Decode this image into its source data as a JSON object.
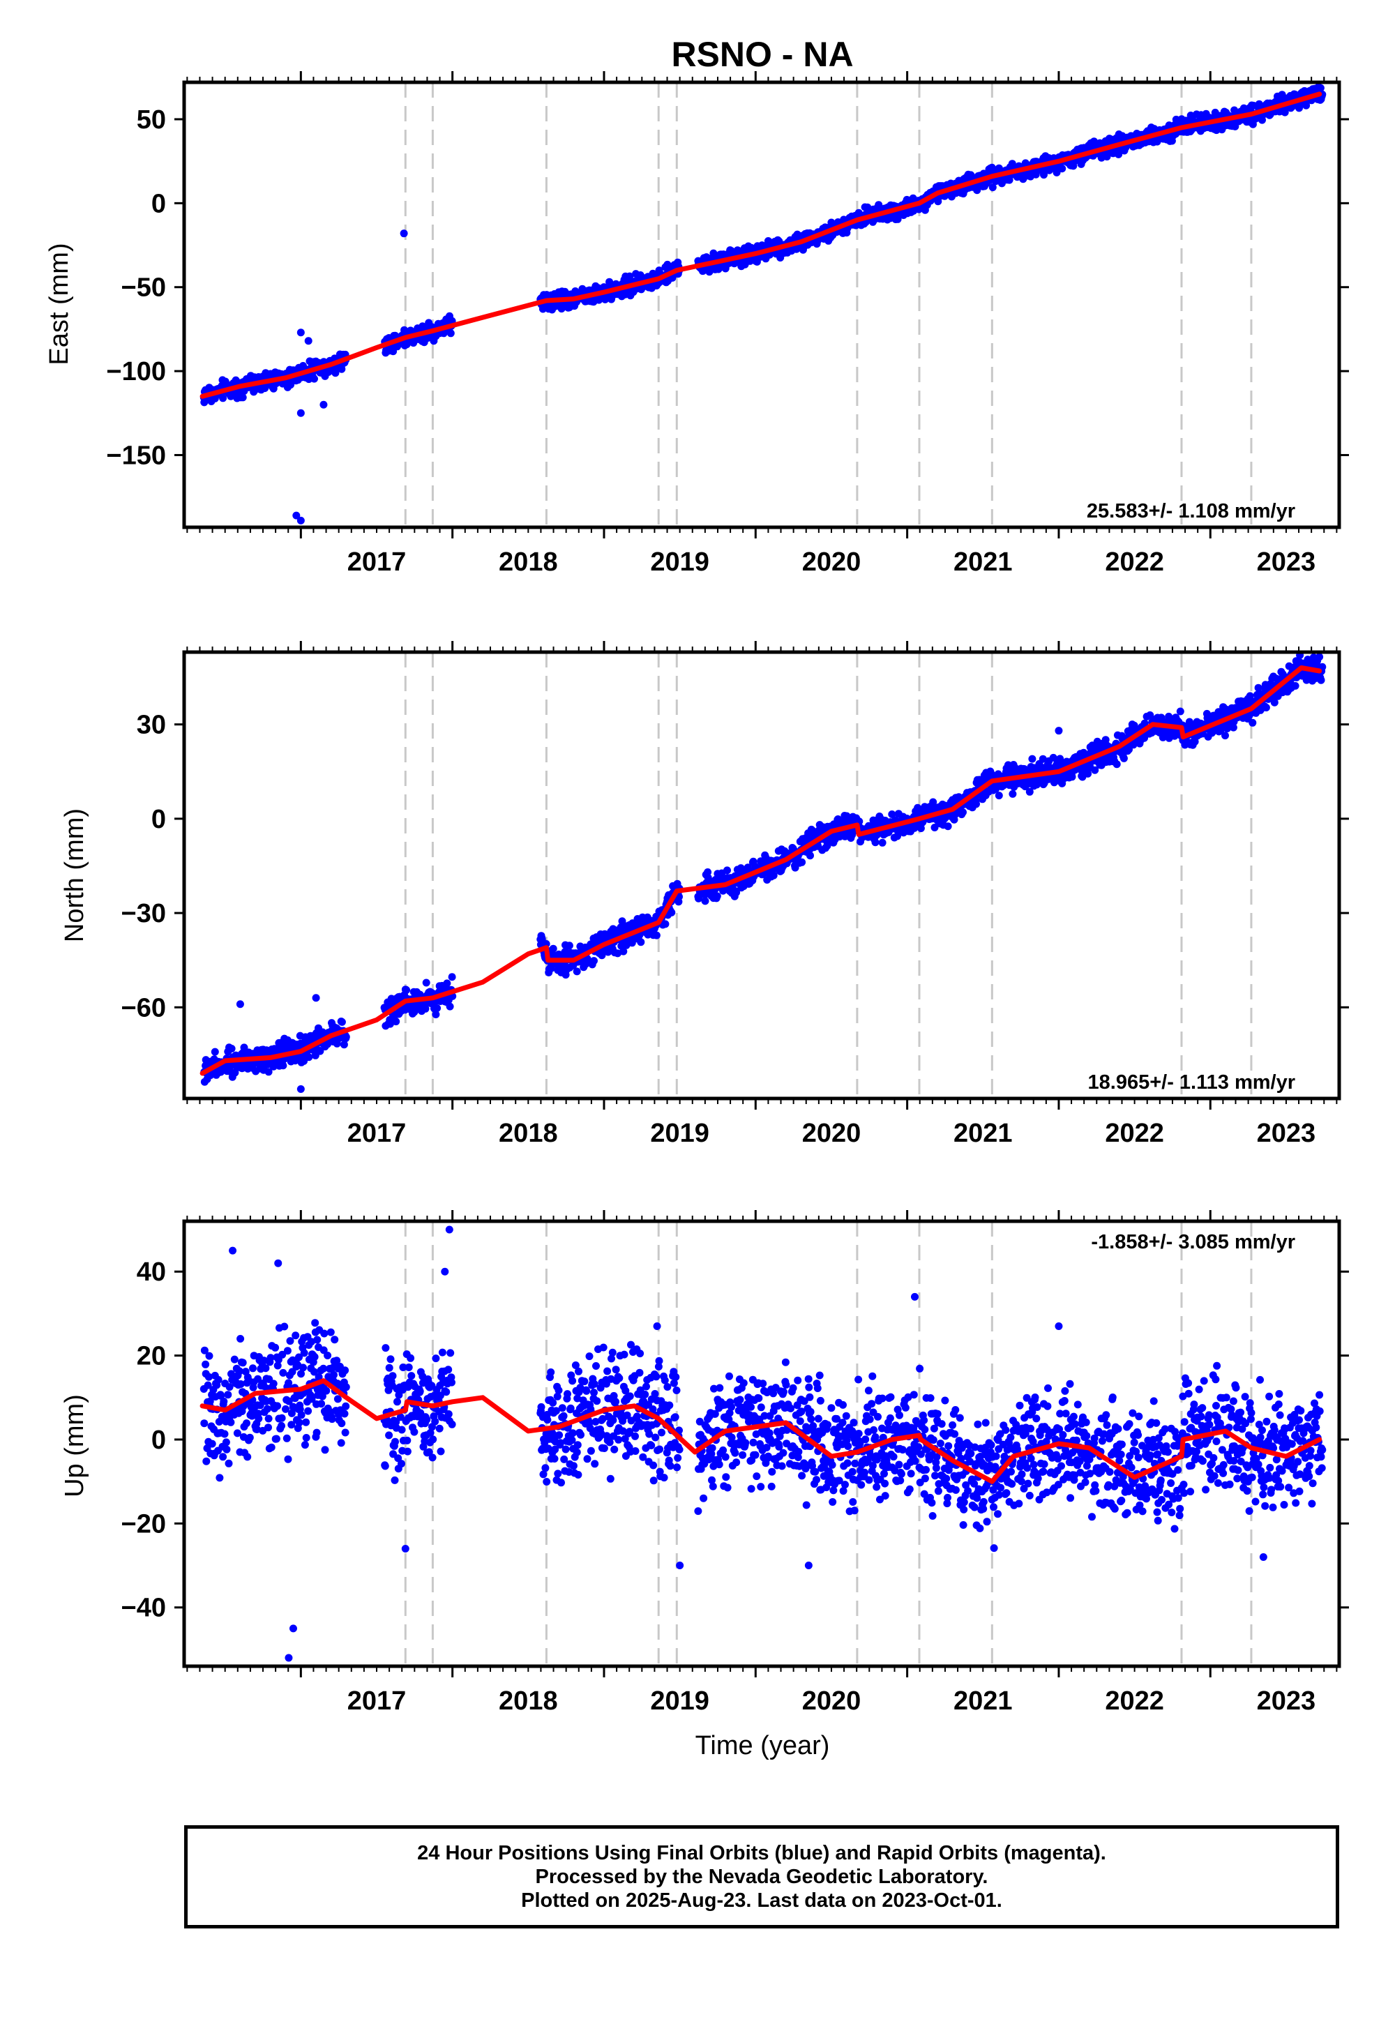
{
  "title": "RSNO - NA",
  "xlabel": "Time (year)",
  "colors": {
    "final_orbits": "#0000ff",
    "model": "#ff0000",
    "event_lines": "#c8c8c8",
    "frame": "#000000"
  },
  "footer": {
    "line1": "24 Hour Positions Using Final Orbits (blue) and Rapid Orbits (magenta).",
    "line2": "Processed by the Nevada Geodetic Laboratory.",
    "line3": "Plotted on 2025-Aug-23. Last data on 2023-Oct-01."
  },
  "chart_data": [
    {
      "type": "scatter",
      "ylabel": "East (mm)",
      "rate_label": "25.583+/- 1.108 mm/yr",
      "xlim": [
        2016.23,
        2023.85
      ],
      "ylim": [
        -193,
        72
      ],
      "x_ticks": [
        "2017",
        "2018",
        "2019",
        "2020",
        "2021",
        "2022",
        "2023"
      ],
      "y_ticks": [
        50,
        0,
        -50,
        -100,
        -150
      ],
      "event_lines": [
        2017.69,
        2017.87,
        2018.62,
        2019.36,
        2019.48,
        2020.67,
        2021.08,
        2021.56,
        2022.81,
        2023.27
      ],
      "model": [
        [
          2016.35,
          -115
        ],
        [
          2016.6,
          -109
        ],
        [
          2016.9,
          -104
        ],
        [
          2017.2,
          -96
        ],
        [
          2017.5,
          -86
        ],
        [
          2017.69,
          -80
        ],
        [
          2017.87,
          -76
        ],
        [
          2018.2,
          -68
        ],
        [
          2018.62,
          -58
        ],
        [
          2018.8,
          -57
        ],
        [
          2019.0,
          -53
        ],
        [
          2019.36,
          -45
        ],
        [
          2019.48,
          -40
        ],
        [
          2020.0,
          -30
        ],
        [
          2020.3,
          -23
        ],
        [
          2020.67,
          -10
        ],
        [
          2021.08,
          0
        ],
        [
          2021.2,
          6
        ],
        [
          2021.56,
          16
        ],
        [
          2022.0,
          25
        ],
        [
          2022.4,
          35
        ],
        [
          2022.81,
          45
        ],
        [
          2023.27,
          53
        ],
        [
          2023.72,
          65
        ]
      ],
      "points": {
        "jitter": 2.5,
        "outliers": [
          [
            2017.68,
            -18
          ],
          [
            2017.0,
            -77
          ],
          [
            2017.05,
            -82
          ],
          [
            2016.97,
            -186
          ],
          [
            2017.0,
            -189
          ],
          [
            2017.0,
            -125
          ],
          [
            2017.15,
            -120
          ]
        ]
      }
    },
    {
      "type": "scatter",
      "ylabel": "North (mm)",
      "rate_label": "18.965+/- 1.113 mm/yr",
      "xlim": [
        2016.23,
        2023.85
      ],
      "ylim": [
        -89,
        53
      ],
      "x_ticks": [
        "2017",
        "2018",
        "2019",
        "2020",
        "2021",
        "2022",
        "2023"
      ],
      "y_ticks": [
        30,
        0,
        -30,
        -60
      ],
      "event_lines": [
        2017.69,
        2017.87,
        2018.62,
        2019.36,
        2019.48,
        2020.67,
        2021.08,
        2021.56,
        2022.81,
        2023.27
      ],
      "model": [
        [
          2016.35,
          -81
        ],
        [
          2016.5,
          -77
        ],
        [
          2016.8,
          -76
        ],
        [
          2017.0,
          -74
        ],
        [
          2017.2,
          -69
        ],
        [
          2017.5,
          -64
        ],
        [
          2017.69,
          -58
        ],
        [
          2017.87,
          -57
        ],
        [
          2018.2,
          -52
        ],
        [
          2018.5,
          -43
        ],
        [
          2018.62,
          -41
        ],
        [
          2018.63,
          -45
        ],
        [
          2018.8,
          -45
        ],
        [
          2019.0,
          -40
        ],
        [
          2019.36,
          -33
        ],
        [
          2019.48,
          -23
        ],
        [
          2019.8,
          -21
        ],
        [
          2020.2,
          -13
        ],
        [
          2020.5,
          -4
        ],
        [
          2020.67,
          -2
        ],
        [
          2020.68,
          -5
        ],
        [
          2021.08,
          0
        ],
        [
          2021.3,
          3
        ],
        [
          2021.56,
          12
        ],
        [
          2022.0,
          15
        ],
        [
          2022.4,
          23
        ],
        [
          2022.62,
          30
        ],
        [
          2022.81,
          29
        ],
        [
          2022.82,
          26
        ],
        [
          2023.27,
          35
        ],
        [
          2023.6,
          48
        ],
        [
          2023.72,
          47
        ]
      ],
      "points": {
        "jitter": 2.0,
        "outliers": [
          [
            2016.6,
            -59
          ],
          [
            2017.0,
            -86
          ],
          [
            2017.1,
            -57
          ],
          [
            2022.0,
            28
          ]
        ]
      }
    },
    {
      "type": "scatter",
      "ylabel": "Up (mm)",
      "rate_label": "-1.858+/- 3.085 mm/yr",
      "xlim": [
        2016.23,
        2023.85
      ],
      "ylim": [
        -54,
        52
      ],
      "x_ticks": [
        "2017",
        "2018",
        "2019",
        "2020",
        "2021",
        "2022",
        "2023"
      ],
      "y_ticks": [
        40,
        20,
        0,
        -20,
        -40
      ],
      "event_lines": [
        2017.69,
        2017.87,
        2018.62,
        2019.36,
        2019.48,
        2020.67,
        2021.08,
        2021.56,
        2022.81,
        2023.27
      ],
      "model": [
        [
          2016.35,
          8
        ],
        [
          2016.5,
          7
        ],
        [
          2016.7,
          11
        ],
        [
          2017.0,
          12
        ],
        [
          2017.15,
          14
        ],
        [
          2017.3,
          10
        ],
        [
          2017.5,
          5
        ],
        [
          2017.69,
          7
        ],
        [
          2017.7,
          9
        ],
        [
          2017.87,
          8
        ],
        [
          2018.0,
          9
        ],
        [
          2018.2,
          10
        ],
        [
          2018.5,
          2
        ],
        [
          2018.7,
          3
        ],
        [
          2019.0,
          7
        ],
        [
          2019.2,
          8
        ],
        [
          2019.36,
          5
        ],
        [
          2019.48,
          1
        ],
        [
          2019.6,
          -3
        ],
        [
          2019.8,
          2
        ],
        [
          2020.0,
          3
        ],
        [
          2020.2,
          4
        ],
        [
          2020.5,
          -4
        ],
        [
          2020.67,
          -3
        ],
        [
          2020.9,
          0
        ],
        [
          2021.08,
          1
        ],
        [
          2021.09,
          0
        ],
        [
          2021.3,
          -5
        ],
        [
          2021.56,
          -10
        ],
        [
          2021.7,
          -4
        ],
        [
          2022.0,
          -1
        ],
        [
          2022.2,
          -2
        ],
        [
          2022.5,
          -9
        ],
        [
          2022.81,
          -4
        ],
        [
          2022.82,
          0
        ],
        [
          2023.1,
          2
        ],
        [
          2023.27,
          -2
        ],
        [
          2023.5,
          -4
        ],
        [
          2023.72,
          0
        ]
      ],
      "points": {
        "jitter": 6.5,
        "outliers": [
          [
            2016.55,
            45
          ],
          [
            2016.85,
            42
          ],
          [
            2017.98,
            50
          ],
          [
            2017.95,
            40
          ],
          [
            2016.95,
            -45
          ],
          [
            2016.92,
            -52
          ],
          [
            2017.69,
            -26
          ],
          [
            2019.5,
            -30
          ],
          [
            2020.35,
            -30
          ],
          [
            2021.05,
            34
          ],
          [
            2022.0,
            27
          ],
          [
            2023.35,
            -28
          ],
          [
            2019.35,
            27
          ]
        ]
      }
    }
  ]
}
